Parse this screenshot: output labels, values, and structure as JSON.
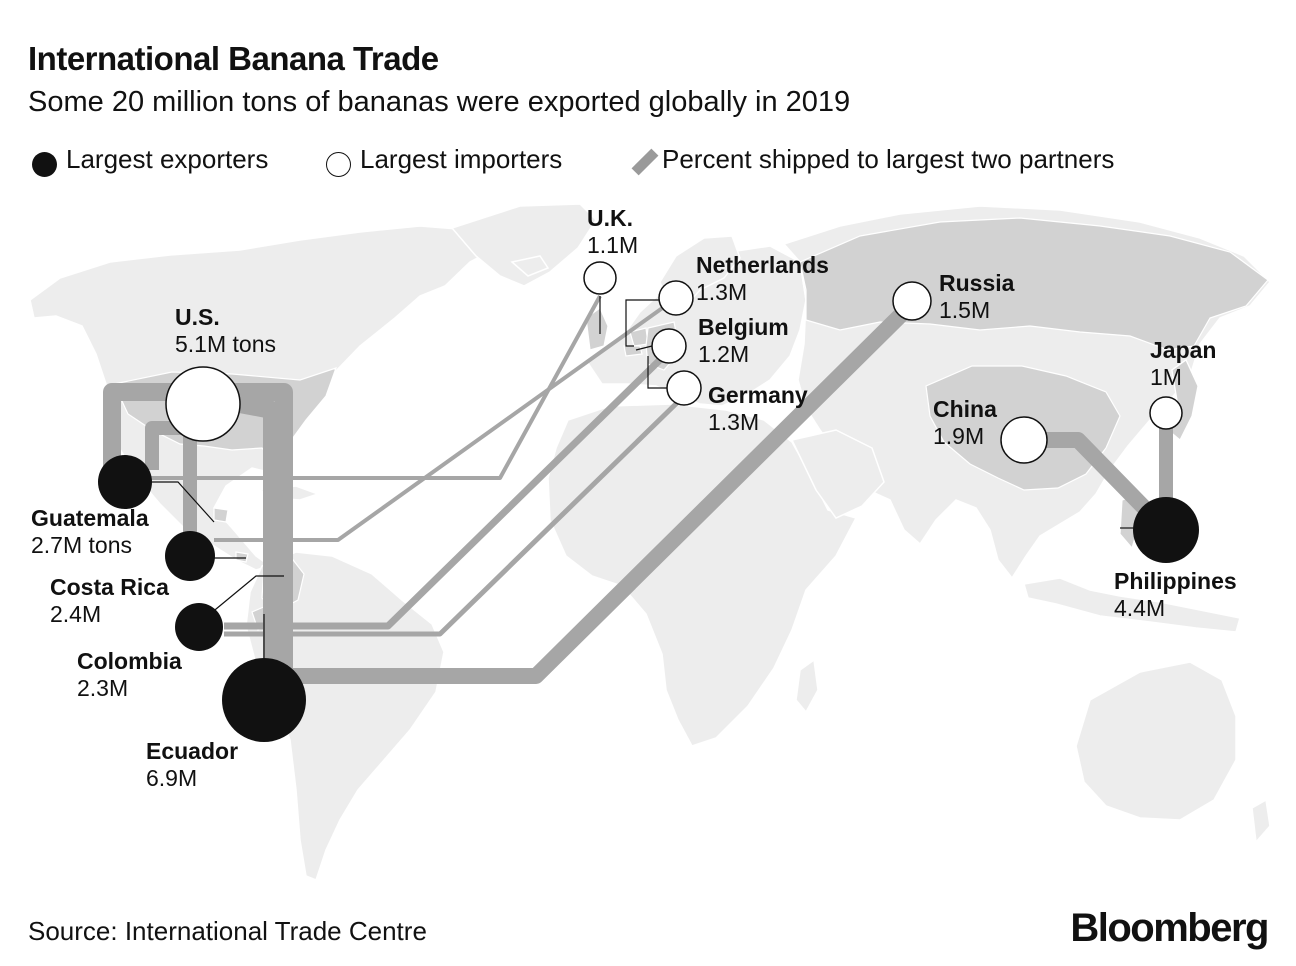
{
  "header": {
    "title": "International Banana Trade",
    "subtitle": "Some 20 million tons of bananas were exported globally in 2019"
  },
  "legend": {
    "exporters": "Largest exporters",
    "importers": "Largest importers",
    "share": "Percent shipped to largest two partners"
  },
  "exporters": [
    {
      "name": "Ecuador",
      "value": "6.9M",
      "tons": 6.9
    },
    {
      "name": "Philippines",
      "value": "4.4M",
      "tons": 4.4
    },
    {
      "name": "Guatemala",
      "value": "2.7M tons",
      "tons": 2.7
    },
    {
      "name": "Costa Rica",
      "value": "2.4M",
      "tons": 2.4
    },
    {
      "name": "Colombia",
      "value": "2.3M",
      "tons": 2.3
    }
  ],
  "importers": [
    {
      "name": "U.S.",
      "value": "5.1M tons",
      "tons": 5.1
    },
    {
      "name": "China",
      "value": "1.9M",
      "tons": 1.9
    },
    {
      "name": "Russia",
      "value": "1.5M",
      "tons": 1.5
    },
    {
      "name": "Netherlands",
      "value": "1.3M",
      "tons": 1.3
    },
    {
      "name": "Germany",
      "value": "1.3M",
      "tons": 1.3
    },
    {
      "name": "Belgium",
      "value": "1.2M",
      "tons": 1.2
    },
    {
      "name": "U.K.",
      "value": "1.1M",
      "tons": 1.1
    },
    {
      "name": "Japan",
      "value": "1M",
      "tons": 1.0
    }
  ],
  "colors": {
    "ocean": "#ffffff",
    "land": "#ededed",
    "land_highlight": "#d2d2d2",
    "border": "#ffffff",
    "flow": "#a6a6a6",
    "exporter": "#111111",
    "importer": "#ffffff"
  },
  "footer": {
    "source": "Source: International Trade Centre",
    "brand": "Bloomberg"
  }
}
